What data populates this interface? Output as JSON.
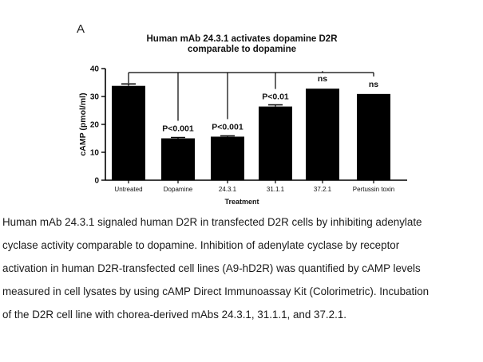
{
  "panel_letter": "A",
  "chart_data": {
    "type": "bar",
    "title_lines": [
      "Human mAb 24.3.1 activates dopamine D2R",
      "comparable to dopamine"
    ],
    "xlabel": "Treatment",
    "ylabel": "cAMP (pmol/ml)",
    "ylim": [
      0,
      40
    ],
    "yticks": [
      0,
      10,
      20,
      30,
      40
    ],
    "categories": [
      "Untreated",
      "Dopamine",
      "24.3.1",
      "31.1.1",
      "37.2.1",
      "Pertussin toxin"
    ],
    "values": [
      33.8,
      15.0,
      15.6,
      26.4,
      32.8,
      30.9
    ],
    "errors": [
      0.7,
      0.3,
      0.3,
      0.6,
      0,
      0
    ],
    "significance": [
      "",
      "P<0.001",
      "P<0.001",
      "P<0.01",
      "ns",
      "ns"
    ],
    "comparison_bracket_from": "Untreated",
    "grid": false,
    "bar_color": "#000000"
  },
  "caption_lines": [
    "Human mAb 24.3.1 signaled human D2R in transfected D2R cells by inhibiting adenylate",
    "cyclase activity comparable to dopamine. Inhibition of adenylate cyclase by receptor",
    "activation in human D2R-transfected cell lines (A9-hD2R) was quantified by cAMP levels",
    "measured in cell lysates by using cAMP Direct Immunoassay Kit (Colorimetric). Incubation",
    "of the D2R cell line with chorea-derived mAbs 24.3.1, 31.1.1, and 37.2.1."
  ]
}
